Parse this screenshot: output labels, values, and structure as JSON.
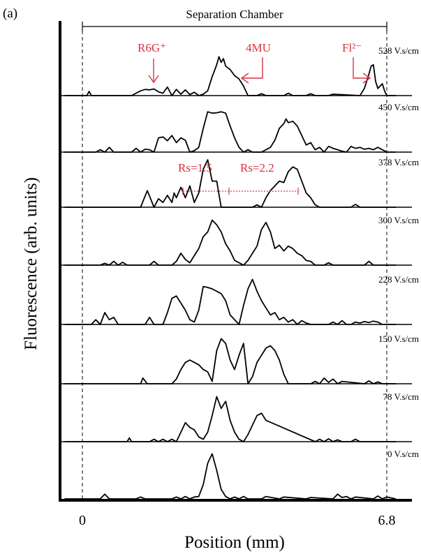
{
  "panel_label": "(a)",
  "chamber_label": "Separation Chamber",
  "colors": {
    "annotation": "#d6343f",
    "trace": "#000000"
  },
  "chart_data": {
    "type": "line",
    "xlabel": "Position (mm)",
    "ylabel": "Fluorescence (arb. units)",
    "xlim": [
      -0.45,
      7.05
    ],
    "x_ticks": [
      {
        "value": 0,
        "label": "0"
      },
      {
        "value": 6.8,
        "label": "6.8"
      }
    ],
    "dashed_markers_x": [
      0,
      6.8
    ],
    "grid": false,
    "series": [
      {
        "name": "528 V.s/cm",
        "x": [
          -0.4,
          0.1,
          0.15,
          0.2,
          0.3,
          1.1,
          1.3,
          1.4,
          1.5,
          1.6,
          1.7,
          1.8,
          1.9,
          2.0,
          2.1,
          2.2,
          2.3,
          2.4,
          2.5,
          2.6,
          2.7,
          2.8,
          2.9,
          3.0,
          3.05,
          3.1,
          3.15,
          3.2,
          3.3,
          3.4,
          3.5,
          3.6,
          3.7,
          3.8,
          3.9,
          4.0,
          4.1,
          4.5,
          4.6,
          4.7,
          5.0,
          5.1,
          5.2,
          5.5,
          5.6,
          6.2,
          6.3,
          6.4,
          6.45,
          6.5,
          6.55,
          6.6,
          6.7,
          6.75,
          6.8,
          6.9,
          7.0
        ],
        "y": [
          0,
          0,
          0.09,
          0,
          0,
          0,
          0.1,
          0.13,
          0.12,
          0.14,
          0.08,
          0.05,
          0.18,
          0,
          0.13,
          0.03,
          0.12,
          0.02,
          0.07,
          0,
          0.03,
          0.1,
          0.4,
          0.65,
          0.82,
          0.7,
          0.78,
          0.62,
          0.55,
          0.42,
          0.35,
          0.2,
          0,
          0,
          0,
          0.04,
          0,
          0,
          0.05,
          0,
          0,
          0.04,
          0,
          0,
          0.03,
          0,
          0.15,
          0.45,
          0.62,
          0.65,
          0.3,
          0.15,
          0.25,
          0.1,
          0,
          0,
          0
        ]
      },
      {
        "name": "450 V.s/cm",
        "x": [
          -0.4,
          0.3,
          0.4,
          0.5,
          0.6,
          0.7,
          1.1,
          1.2,
          1.3,
          1.4,
          1.5,
          1.6,
          1.7,
          1.8,
          1.9,
          2.0,
          2.1,
          2.2,
          2.3,
          2.4,
          2.5,
          2.6,
          2.7,
          2.8,
          2.9,
          3.0,
          3.1,
          3.2,
          3.3,
          3.4,
          3.5,
          3.6,
          3.7,
          3.8,
          4.0,
          4.2,
          4.3,
          4.4,
          4.5,
          4.55,
          4.6,
          4.7,
          4.8,
          4.9,
          5.0,
          5.1,
          5.2,
          5.3,
          5.4,
          5.5,
          5.6,
          5.7,
          5.8,
          5.9,
          6.0,
          6.1,
          6.2,
          6.3,
          6.4,
          6.5,
          6.6,
          6.7,
          6.8,
          6.9,
          7.0
        ],
        "y": [
          0,
          0,
          0.05,
          0,
          0.1,
          0,
          0,
          0.08,
          0,
          0.06,
          0.05,
          0,
          0.3,
          0.32,
          0.24,
          0.35,
          0.2,
          0.3,
          0.25,
          0,
          0.03,
          0.1,
          0.5,
          0.85,
          0.82,
          0.83,
          0.85,
          0.82,
          0.55,
          0.3,
          0.1,
          0,
          0.05,
          0,
          0,
          0.1,
          0.25,
          0.5,
          0.6,
          0.7,
          0.62,
          0.65,
          0.55,
          0.35,
          0.15,
          0.2,
          0.05,
          0.1,
          0,
          0.12,
          0.08,
          0.05,
          0.02,
          0,
          0.12,
          0.08,
          0.1,
          0.06,
          0.08,
          0.05,
          0.1,
          0.05,
          0,
          0,
          0
        ]
      },
      {
        "name": "378 V.s/cm",
        "x": [
          -0.4,
          1.3,
          1.45,
          1.6,
          1.7,
          1.8,
          1.9,
          2.0,
          2.05,
          2.1,
          2.2,
          2.3,
          2.4,
          2.5,
          2.6,
          2.7,
          2.8,
          2.9,
          3.0,
          3.1,
          3.2,
          3.3,
          3.4,
          3.5,
          3.6,
          3.7,
          3.8,
          3.9,
          4.0,
          4.1,
          4.2,
          4.3,
          4.4,
          4.5,
          4.6,
          4.7,
          4.8,
          4.9,
          5.0,
          5.1,
          5.2,
          5.3,
          5.4,
          6.0,
          6.1,
          6.2,
          7.0
        ],
        "y": [
          0,
          0,
          0.35,
          0,
          0.18,
          0.1,
          0.25,
          0.1,
          0.3,
          0.2,
          0.42,
          0.2,
          0.45,
          0.1,
          0.3,
          0.8,
          1.0,
          0.55,
          0.55,
          0,
          0,
          0,
          0,
          0,
          0,
          0,
          0,
          0.05,
          0,
          0.2,
          0.35,
          0.45,
          0.55,
          0.52,
          0.75,
          0.85,
          0.8,
          0.55,
          0.3,
          0.2,
          0.05,
          0,
          0,
          0,
          0.06,
          0,
          0
        ]
      },
      {
        "name": "300 V.s/cm",
        "x": [
          -0.4,
          0.4,
          0.5,
          0.6,
          0.7,
          0.8,
          0.9,
          1.0,
          1.5,
          1.6,
          1.7,
          2.0,
          2.1,
          2.2,
          2.3,
          2.4,
          2.5,
          2.6,
          2.7,
          2.8,
          2.9,
          3.0,
          3.1,
          3.2,
          3.3,
          3.4,
          3.5,
          3.6,
          3.7,
          3.8,
          3.9,
          4.0,
          4.1,
          4.2,
          4.3,
          4.4,
          4.5,
          4.6,
          4.7,
          4.8,
          4.9,
          5.0,
          5.1,
          5.2,
          5.3,
          5.4,
          5.5,
          5.6,
          6.3,
          6.4,
          6.5,
          7.0
        ],
        "y": [
          0,
          0,
          0.04,
          0,
          0.08,
          0,
          0.06,
          0,
          0,
          0.08,
          0,
          0,
          0.08,
          0.25,
          0.12,
          0.05,
          0.2,
          0.35,
          0.6,
          0.7,
          0.95,
          0.85,
          0.7,
          0.45,
          0.3,
          0.1,
          0.05,
          0,
          0.1,
          0.25,
          0.4,
          0.75,
          0.9,
          0.7,
          0.35,
          0.42,
          0.3,
          0.4,
          0.35,
          0.25,
          0.2,
          0.1,
          0.08,
          0,
          0,
          0,
          0.05,
          0,
          0,
          0.08,
          0,
          0
        ]
      },
      {
        "name": "228 V.s/cm",
        "x": [
          -0.4,
          0.2,
          0.3,
          0.4,
          0.5,
          0.6,
          0.7,
          0.8,
          1.4,
          1.5,
          1.6,
          1.8,
          1.9,
          2.0,
          2.1,
          2.2,
          2.3,
          2.4,
          2.5,
          2.6,
          2.7,
          2.8,
          2.9,
          3.0,
          3.1,
          3.2,
          3.3,
          3.4,
          3.5,
          3.6,
          3.7,
          3.8,
          3.9,
          4.0,
          4.1,
          4.2,
          4.3,
          4.4,
          4.5,
          4.6,
          4.7,
          4.8,
          4.9,
          5.0,
          5.1,
          5.5,
          5.6,
          5.7,
          5.8,
          5.9,
          6.0,
          6.1,
          6.2,
          6.3,
          6.4,
          6.5,
          6.6,
          6.7,
          7.0
        ],
        "y": [
          0,
          0,
          0.1,
          0,
          0.25,
          0.1,
          0.15,
          0,
          0,
          0.15,
          0,
          0,
          0.25,
          0.55,
          0.6,
          0.45,
          0.3,
          0.1,
          0.05,
          0.3,
          0.8,
          0.78,
          0.75,
          0.7,
          0.65,
          0.5,
          0.2,
          0.1,
          0,
          0.4,
          0.75,
          0.95,
          0.7,
          0.5,
          0.35,
          0.2,
          0.25,
          0.1,
          0.15,
          0.05,
          0.1,
          0,
          0.08,
          0.03,
          0,
          0,
          0.05,
          0,
          0.08,
          0,
          0,
          0.05,
          0.03,
          0.06,
          0.04,
          0.07,
          0.05,
          0,
          0
        ]
      },
      {
        "name": "150 V.s/cm",
        "x": [
          -0.4,
          1.3,
          1.35,
          1.45,
          2.0,
          2.1,
          2.2,
          2.3,
          2.4,
          2.5,
          2.6,
          2.7,
          2.8,
          2.9,
          3.0,
          3.1,
          3.2,
          3.3,
          3.4,
          3.5,
          3.6,
          3.7,
          3.8,
          3.9,
          4.0,
          4.1,
          4.2,
          4.3,
          4.4,
          4.5,
          4.6,
          5.1,
          5.2,
          5.3,
          5.4,
          5.5,
          5.6,
          5.7,
          5.8,
          6.3,
          6.4,
          6.5,
          6.6,
          6.7,
          7.0
        ],
        "y": [
          0,
          0,
          0.12,
          0,
          0,
          0.1,
          0.3,
          0.45,
          0.5,
          0.45,
          0.4,
          0.3,
          0.25,
          0.05,
          0.7,
          0.95,
          0.85,
          0.5,
          0.3,
          0.6,
          0.85,
          0,
          0.15,
          0.45,
          0.6,
          0.75,
          0.8,
          0.7,
          0.5,
          0.2,
          0,
          0,
          0.05,
          0,
          0.12,
          0.03,
          0.1,
          0,
          0.05,
          0,
          0.06,
          0,
          0.04,
          0,
          0
        ]
      },
      {
        "name": "78 V.s/cm",
        "x": [
          -0.4,
          1.0,
          1.05,
          1.1,
          1.5,
          1.6,
          1.7,
          1.8,
          1.9,
          2.0,
          2.1,
          2.2,
          2.3,
          2.4,
          2.5,
          2.6,
          2.7,
          2.8,
          2.9,
          3.0,
          3.1,
          3.2,
          3.3,
          3.4,
          3.5,
          3.6,
          3.7,
          3.8,
          3.9,
          4.0,
          4.1,
          5.2,
          5.3,
          5.4,
          5.5,
          5.6,
          5.7,
          5.8,
          6.0,
          6.1,
          6.2,
          7.0
        ],
        "y": [
          0,
          0,
          0.08,
          0,
          0,
          0.05,
          0,
          0.05,
          0,
          0.05,
          0,
          0.2,
          0.4,
          0.3,
          0.25,
          0.1,
          0.05,
          0.2,
          0.55,
          0.95,
          0.7,
          0.85,
          0.45,
          0.2,
          0.05,
          0,
          0.15,
          0.35,
          0.55,
          0.6,
          0.45,
          0,
          0.05,
          0,
          0.06,
          0,
          0.04,
          0,
          0,
          0.05,
          0,
          0
        ]
      },
      {
        "name": "0 V.s/cm",
        "x": [
          -0.4,
          0.4,
          0.5,
          0.6,
          1.2,
          1.3,
          1.4,
          2.0,
          2.1,
          2.2,
          2.3,
          2.4,
          2.5,
          2.6,
          2.7,
          2.8,
          2.9,
          3.0,
          3.1,
          3.2,
          3.3,
          3.4,
          3.5,
          3.6,
          3.7,
          4.0,
          4.1,
          4.4,
          4.5,
          5.0,
          5.1,
          5.6,
          5.7,
          5.8,
          5.9,
          6.0,
          6.1,
          6.5,
          6.6,
          6.7,
          6.8,
          7.0
        ],
        "y": [
          0,
          0,
          0.1,
          0,
          0,
          0.04,
          0,
          0,
          0.04,
          0,
          0.05,
          0,
          0.04,
          0.05,
          0.3,
          0.75,
          0.95,
          0.6,
          0.2,
          0.05,
          0,
          0.04,
          0,
          0.05,
          0,
          0,
          0.05,
          0,
          0.04,
          0,
          0.03,
          0,
          0.1,
          0.03,
          0.05,
          0,
          0.04,
          0,
          0.06,
          0,
          0.04,
          0
        ]
      }
    ],
    "annotations": {
      "r6g": "R6G⁺",
      "mu4": "4MU",
      "fl": "Fl²⁻",
      "rs1": "Rs=1.5",
      "rs2": "Rs=2.2"
    }
  }
}
